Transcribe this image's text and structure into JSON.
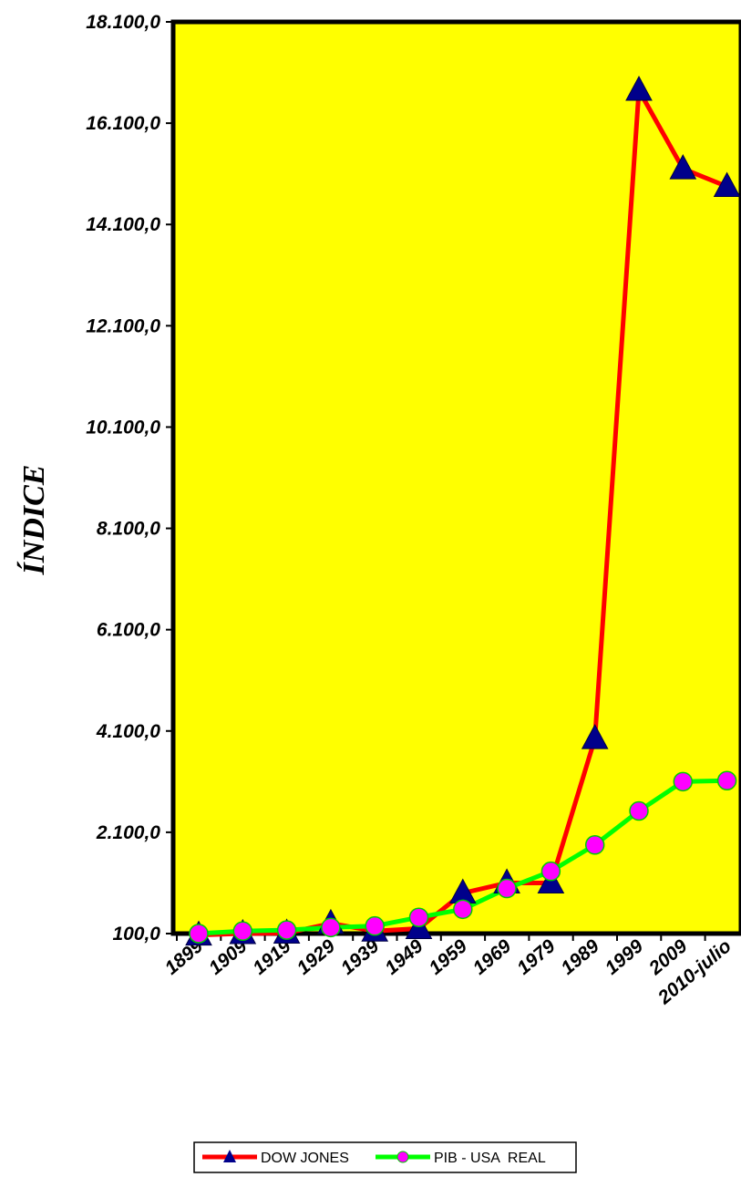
{
  "chart_data": {
    "type": "line",
    "title": "",
    "xlabel": "",
    "ylabel": "ÍNDICE",
    "categories": [
      "1899",
      "1909",
      "1919",
      "1929",
      "1939",
      "1949",
      "1959",
      "1969",
      "1979",
      "1989",
      "1999",
      "2009",
      "2010-julio"
    ],
    "y_ticks": [
      "100,0",
      "2.100,0",
      "4.100,0",
      "6.100,0",
      "8.100,0",
      "10.100,0",
      "12.100,0",
      "14.100,0",
      "16.100,0",
      "18.100,0"
    ],
    "ylim": [
      100,
      18100
    ],
    "grid": false,
    "plot_background": "#ffff00",
    "legend_position": "bottom",
    "series": [
      {
        "name": "DOW JONES",
        "color": "#ff0000",
        "marker": "triangle",
        "marker_color": "#00008b",
        "values": [
          70,
          100,
          110,
          300,
          150,
          200,
          900,
          1100,
          1100,
          3950,
          16750,
          15200,
          14850
        ]
      },
      {
        "name": "PIB - USA  REAL",
        "color": "#00ff00",
        "marker": "circle",
        "marker_color": "#ff00ff",
        "values": [
          100,
          150,
          170,
          220,
          250,
          420,
          580,
          990,
          1330,
          1850,
          2520,
          3100,
          3120
        ]
      }
    ]
  }
}
